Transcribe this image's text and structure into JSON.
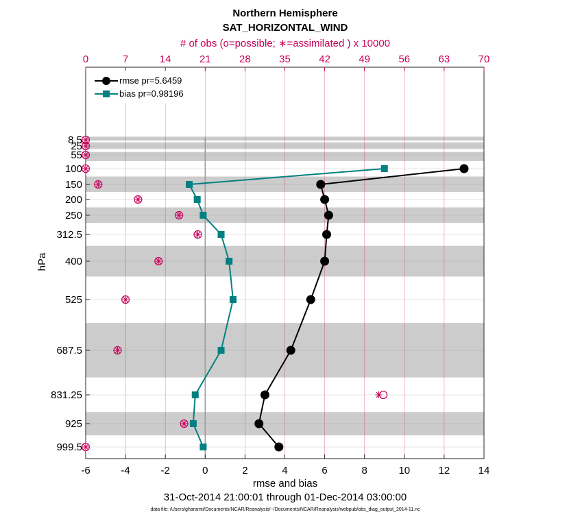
{
  "chart_data": {
    "type": "line",
    "title": "Northern Hemisphere",
    "subtitle": "SAT_HORIZONTAL_WIND",
    "top_axis_label": "# of obs (o=possible; ∗=assimilated ) x 10000",
    "xlabel": "rmse and bias",
    "ylabel": "hPa",
    "date_range": "31-Oct-2014 21:00:01 through 01-Dec-2014 03:00:00",
    "data_file": "data file: /Users/gharamti/Documents/NCAR/Reanalysis/~/Documents/NCAR/Reanalysis/webpub/obs_diag_output_2014-11.nc",
    "xlim": [
      -6,
      14
    ],
    "x_ticks": [
      "-6",
      "-4",
      "-2",
      "0",
      "2",
      "4",
      "6",
      "8",
      "10",
      "12",
      "14"
    ],
    "top_xlim": [
      0,
      70
    ],
    "top_ticks": [
      "0",
      "7",
      "14",
      "21",
      "28",
      "35",
      "42",
      "49",
      "56",
      "63",
      "70"
    ],
    "y_levels": [
      8.5,
      25,
      55,
      100,
      150,
      200,
      250,
      312.5,
      400,
      525,
      687.5,
      831.25,
      925,
      999.5
    ],
    "y_tick_labels": [
      "8.5",
      "25",
      "55",
      "100",
      "150",
      "200",
      "250",
      "312.5",
      "400",
      "525",
      "687.5",
      "831.25",
      "925",
      "999.5"
    ],
    "shaded_bands_hPa": [
      [
        0,
        10
      ],
      [
        15,
        35
      ],
      [
        45,
        75
      ],
      [
        125,
        175
      ],
      [
        225,
        275
      ],
      [
        350,
        450
      ],
      [
        600,
        775
      ],
      [
        887.5,
        962.5
      ]
    ],
    "zero_line": 0,
    "series": [
      {
        "name": "rmse pr=5.6459",
        "legend_label": "rmse pr=5.6459",
        "color": "#000000",
        "marker": "circle",
        "levels": [
          100,
          150,
          200,
          250,
          312.5,
          400,
          525,
          687.5,
          831.25,
          925,
          999.5
        ],
        "values": [
          13.0,
          5.8,
          6.0,
          6.2,
          6.1,
          6.0,
          5.3,
          4.3,
          3.0,
          2.7,
          3.7
        ]
      },
      {
        "name": "bias pr=0.98196",
        "legend_label": "bias pr=0.98196",
        "color": "#008080",
        "marker": "square",
        "levels": [
          100,
          150,
          200,
          250,
          312.5,
          400,
          525,
          687.5,
          831.25,
          925,
          999.5
        ],
        "values": [
          9.0,
          -0.8,
          -0.4,
          -0.1,
          0.8,
          1.2,
          1.4,
          0.8,
          -0.5,
          -0.6,
          -0.1
        ]
      }
    ],
    "obs_counts": {
      "color": "#c8005a",
      "levels": [
        8.5,
        25,
        55,
        100,
        150,
        200,
        250,
        312.5,
        400,
        525,
        687.5,
        831.25,
        925,
        999.5
      ],
      "possible": [
        0,
        0,
        0,
        0,
        2.2,
        9.2,
        16.4,
        19.7,
        12.8,
        7.0,
        5.6,
        52.3,
        17.3,
        0
      ],
      "assimilated": [
        0,
        0,
        0,
        0,
        2.2,
        9.2,
        16.4,
        19.7,
        12.8,
        7.0,
        5.6,
        51.5,
        17.3,
        0
      ]
    }
  }
}
